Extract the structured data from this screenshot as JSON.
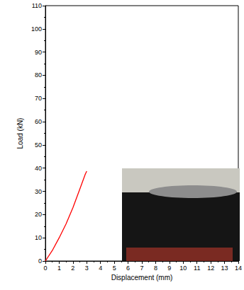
{
  "chart_data": {
    "type": "line",
    "x_label": "Displacement (mm)",
    "y_label": "Load (kN)",
    "series": [
      {
        "name": "Load",
        "color": "#ff0000",
        "x": [
          0,
          0.5,
          1,
          1.5,
          2,
          2.5,
          2.9,
          3
        ],
        "values": [
          0,
          4.5,
          10,
          16,
          23,
          31,
          37.5,
          38.7
        ]
      }
    ],
    "xlim": [
      0,
      14
    ],
    "xticks": [
      0,
      1,
      2,
      3,
      4,
      5,
      6,
      7,
      8,
      9,
      10,
      11,
      12,
      13,
      14
    ],
    "ylim": [
      0,
      110
    ],
    "yticks": [
      0,
      10,
      20,
      30,
      40,
      50,
      60,
      70,
      80,
      90,
      100,
      110
    ],
    "grid": false
  }
}
